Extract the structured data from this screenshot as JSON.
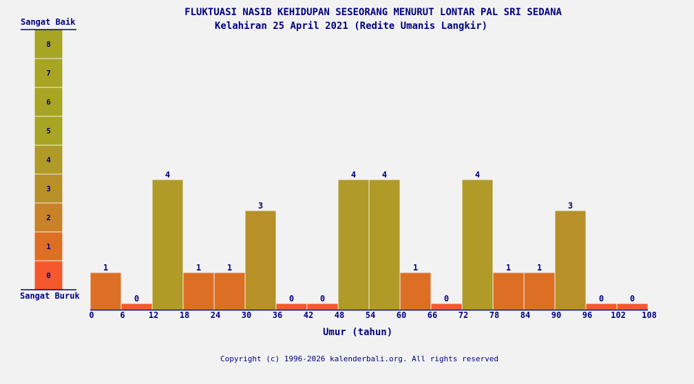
{
  "chart_data": {
    "type": "bar",
    "title": "FLUKTUASI NASIB KEHIDUPAN SESEORANG MENURUT LONTAR PAL SRI SEDANA",
    "subtitle": "Kelahiran 25 April 2021 (Redite Umanis Langkir)",
    "xlabel": "Umur (tahun)",
    "ylabel": "",
    "x_ticks": [
      0,
      6,
      12,
      18,
      24,
      30,
      36,
      42,
      48,
      54,
      60,
      66,
      72,
      78,
      84,
      90,
      96,
      102,
      108
    ],
    "categories": [
      "0-6",
      "6-12",
      "12-18",
      "18-24",
      "24-30",
      "30-36",
      "36-42",
      "42-48",
      "48-54",
      "54-60",
      "60-66",
      "66-72",
      "72-78",
      "78-84",
      "84-90",
      "90-96",
      "96-102",
      "102-108"
    ],
    "values": [
      1,
      0,
      4,
      1,
      1,
      3,
      0,
      0,
      4,
      4,
      1,
      0,
      4,
      1,
      1,
      3,
      0,
      0
    ],
    "ylim": [
      0,
      8
    ],
    "grid": false,
    "legend": {
      "top_label": "Sangat Baik",
      "bottom_label": "Sangat Buruk",
      "levels": [
        0,
        1,
        2,
        3,
        4,
        5,
        6,
        7,
        8
      ],
      "colors": [
        "#f5582c",
        "#dd6f24",
        "#c88228",
        "#b79028",
        "#b09a28",
        "#a8a524",
        "#a8a524",
        "#a8a524",
        "#a8a524"
      ]
    }
  },
  "footer": "Copyright (c) 1996-2026 kalenderbali.org. All rights reserved"
}
